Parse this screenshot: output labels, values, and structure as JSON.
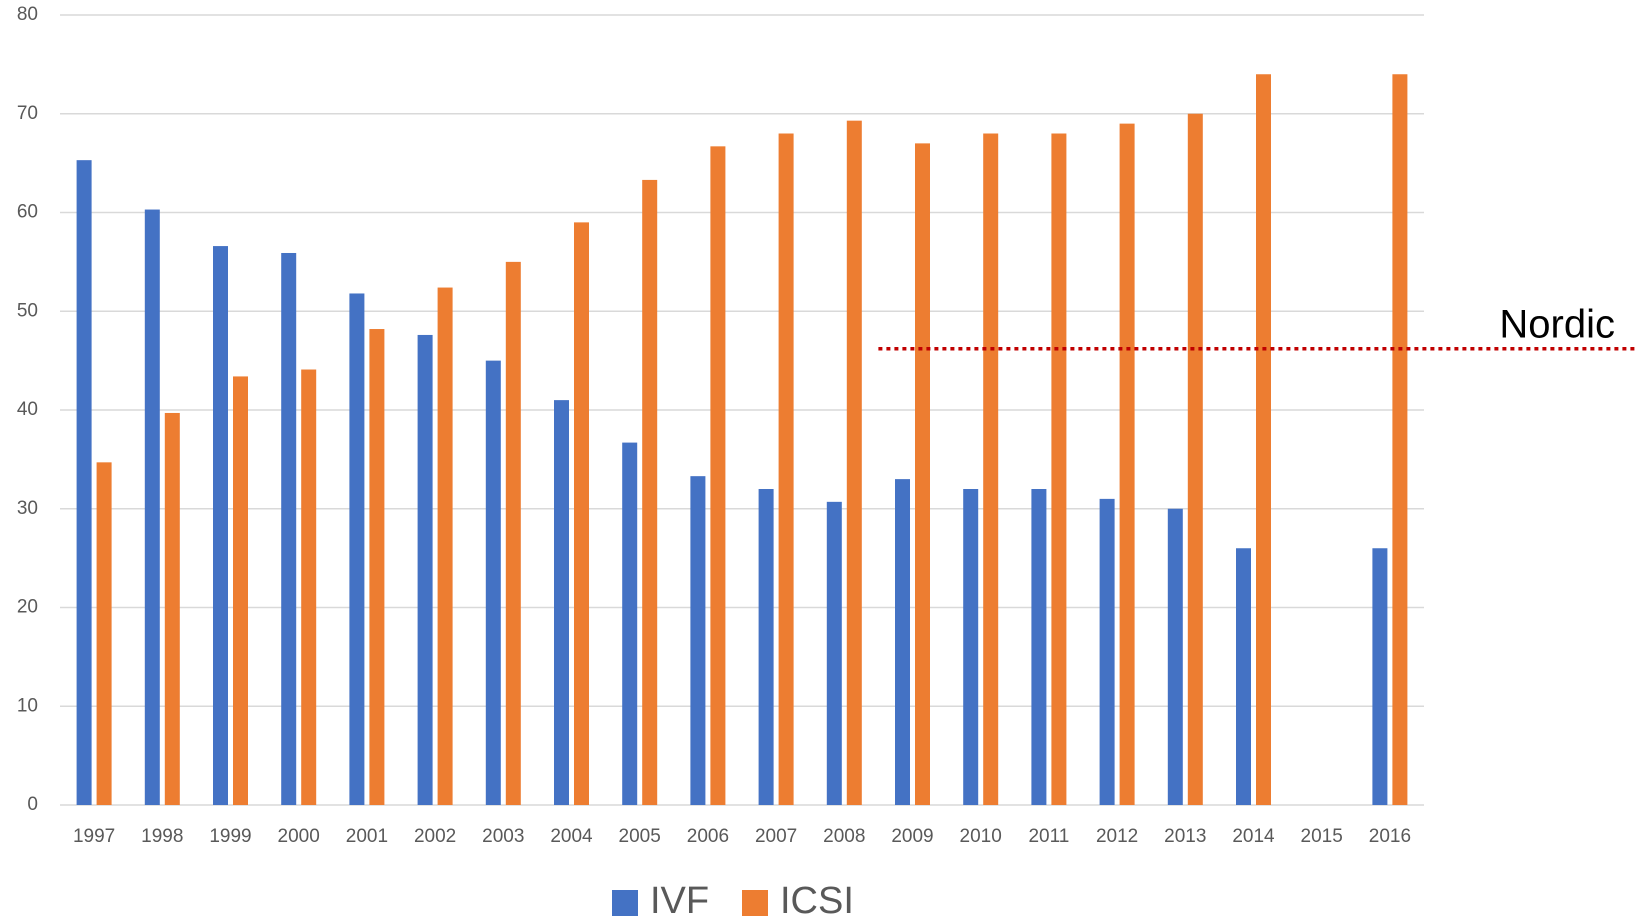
{
  "chart_data": {
    "type": "bar",
    "categories": [
      "1997",
      "1998",
      "1999",
      "2000",
      "2001",
      "2002",
      "2003",
      "2004",
      "2005",
      "2006",
      "2007",
      "2008",
      "2009",
      "2010",
      "2011",
      "2012",
      "2013",
      "2014",
      "2015",
      "2016"
    ],
    "series": [
      {
        "name": "IVF",
        "color": "#4472c4",
        "values": [
          65.3,
          60.3,
          56.6,
          55.9,
          51.8,
          47.6,
          45,
          41,
          36.7,
          33.3,
          32,
          30.7,
          33,
          32,
          32,
          31,
          30,
          26,
          null,
          26
        ]
      },
      {
        "name": "ICSI",
        "color": "#ed7d31",
        "values": [
          34.7,
          39.7,
          43.4,
          44.1,
          48.2,
          52.4,
          55,
          59,
          63.3,
          66.7,
          68,
          69.3,
          67,
          68,
          68,
          69,
          70,
          74,
          null,
          74
        ]
      }
    ],
    "ylim": [
      0,
      80
    ],
    "yticks": [
      0,
      10,
      20,
      30,
      40,
      50,
      60,
      70,
      80
    ],
    "grid": true,
    "reference_line": {
      "label": "Nordic",
      "value": 46.2,
      "color": "#c00000"
    },
    "legend": "bottom"
  }
}
